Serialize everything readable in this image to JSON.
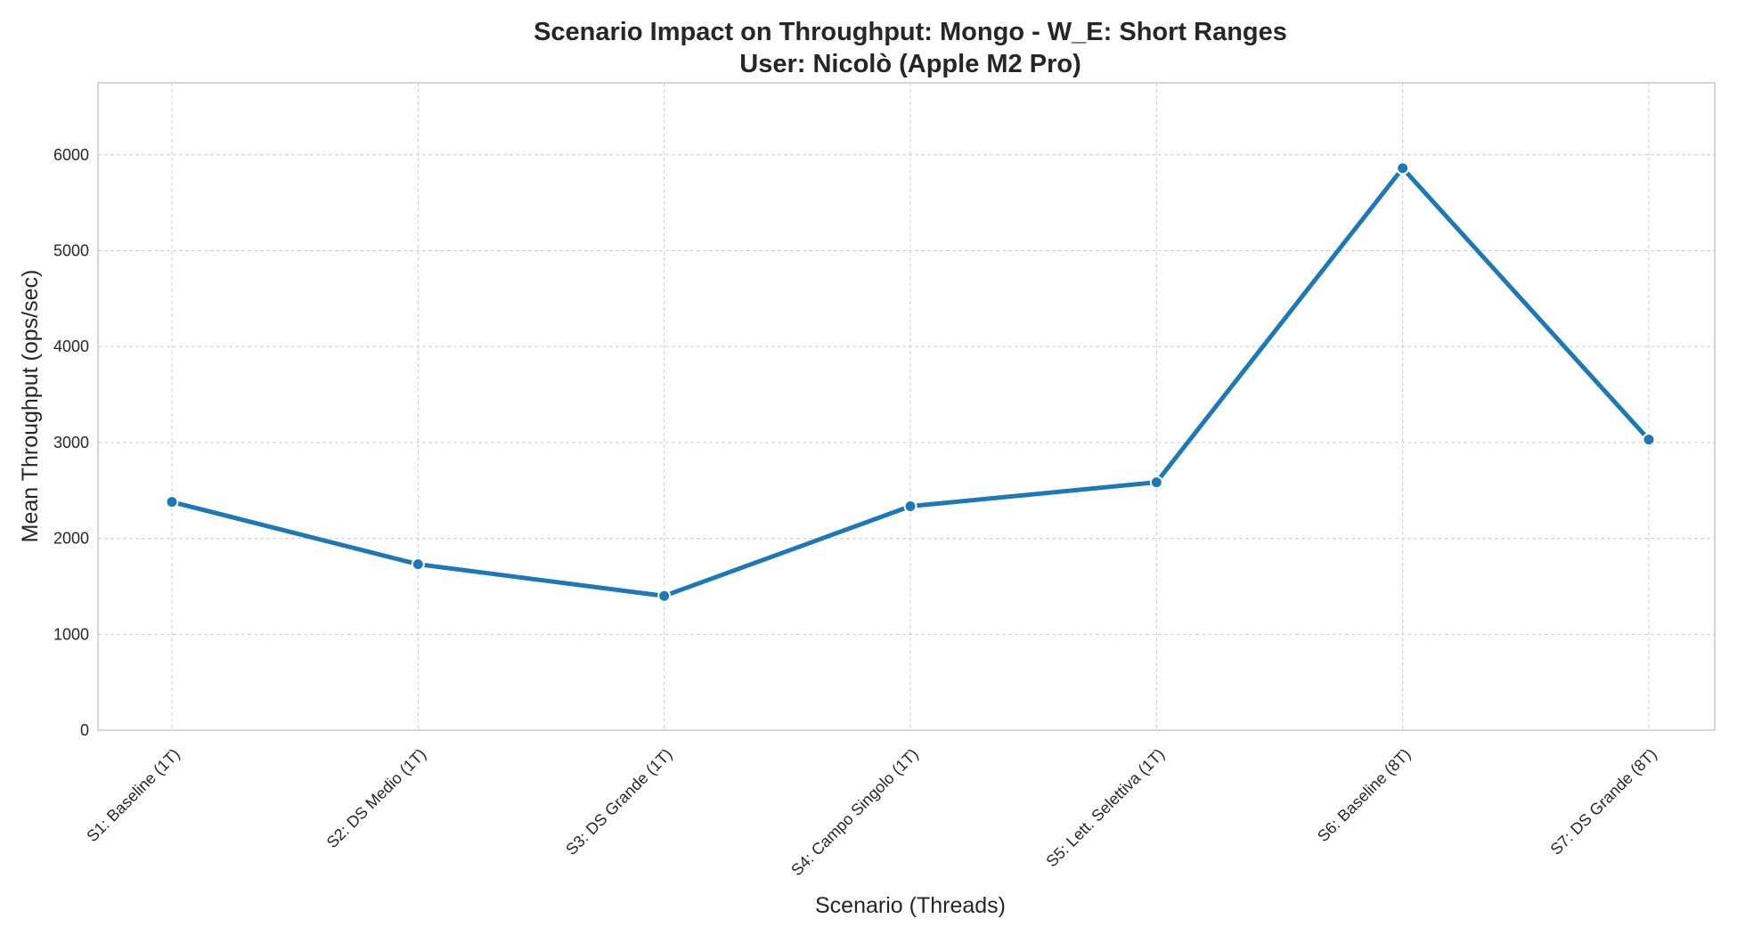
{
  "chart_data": {
    "type": "line",
    "title": "Scenario Impact on Throughput: Mongo - W_E: Short Ranges",
    "subtitle": "User: Nicolò (Apple M2 Pro)",
    "xlabel": "Scenario (Threads)",
    "ylabel": "Mean Throughput (ops/sec)",
    "categories": [
      "S1: Baseline (1T)",
      "S2: DS Medio (1T)",
      "S3: DS Grande (1T)",
      "S4: Campo Singolo (1T)",
      "S5: Lett. Selettiva (1T)",
      "S6: Baseline (8T)",
      "S7: DS Grande (8T)"
    ],
    "values": [
      2380,
      1730,
      1400,
      2335,
      2585,
      5860,
      3030
    ],
    "ylim": [
      0,
      6750
    ],
    "yticks": [
      0,
      1000,
      2000,
      3000,
      4000,
      5000,
      6000
    ],
    "grid": true,
    "marker": "circle",
    "colors": {
      "series": "#1f77b4",
      "grid": "#cccccc",
      "text": "#262626",
      "frame": "#c8c8c8"
    }
  }
}
